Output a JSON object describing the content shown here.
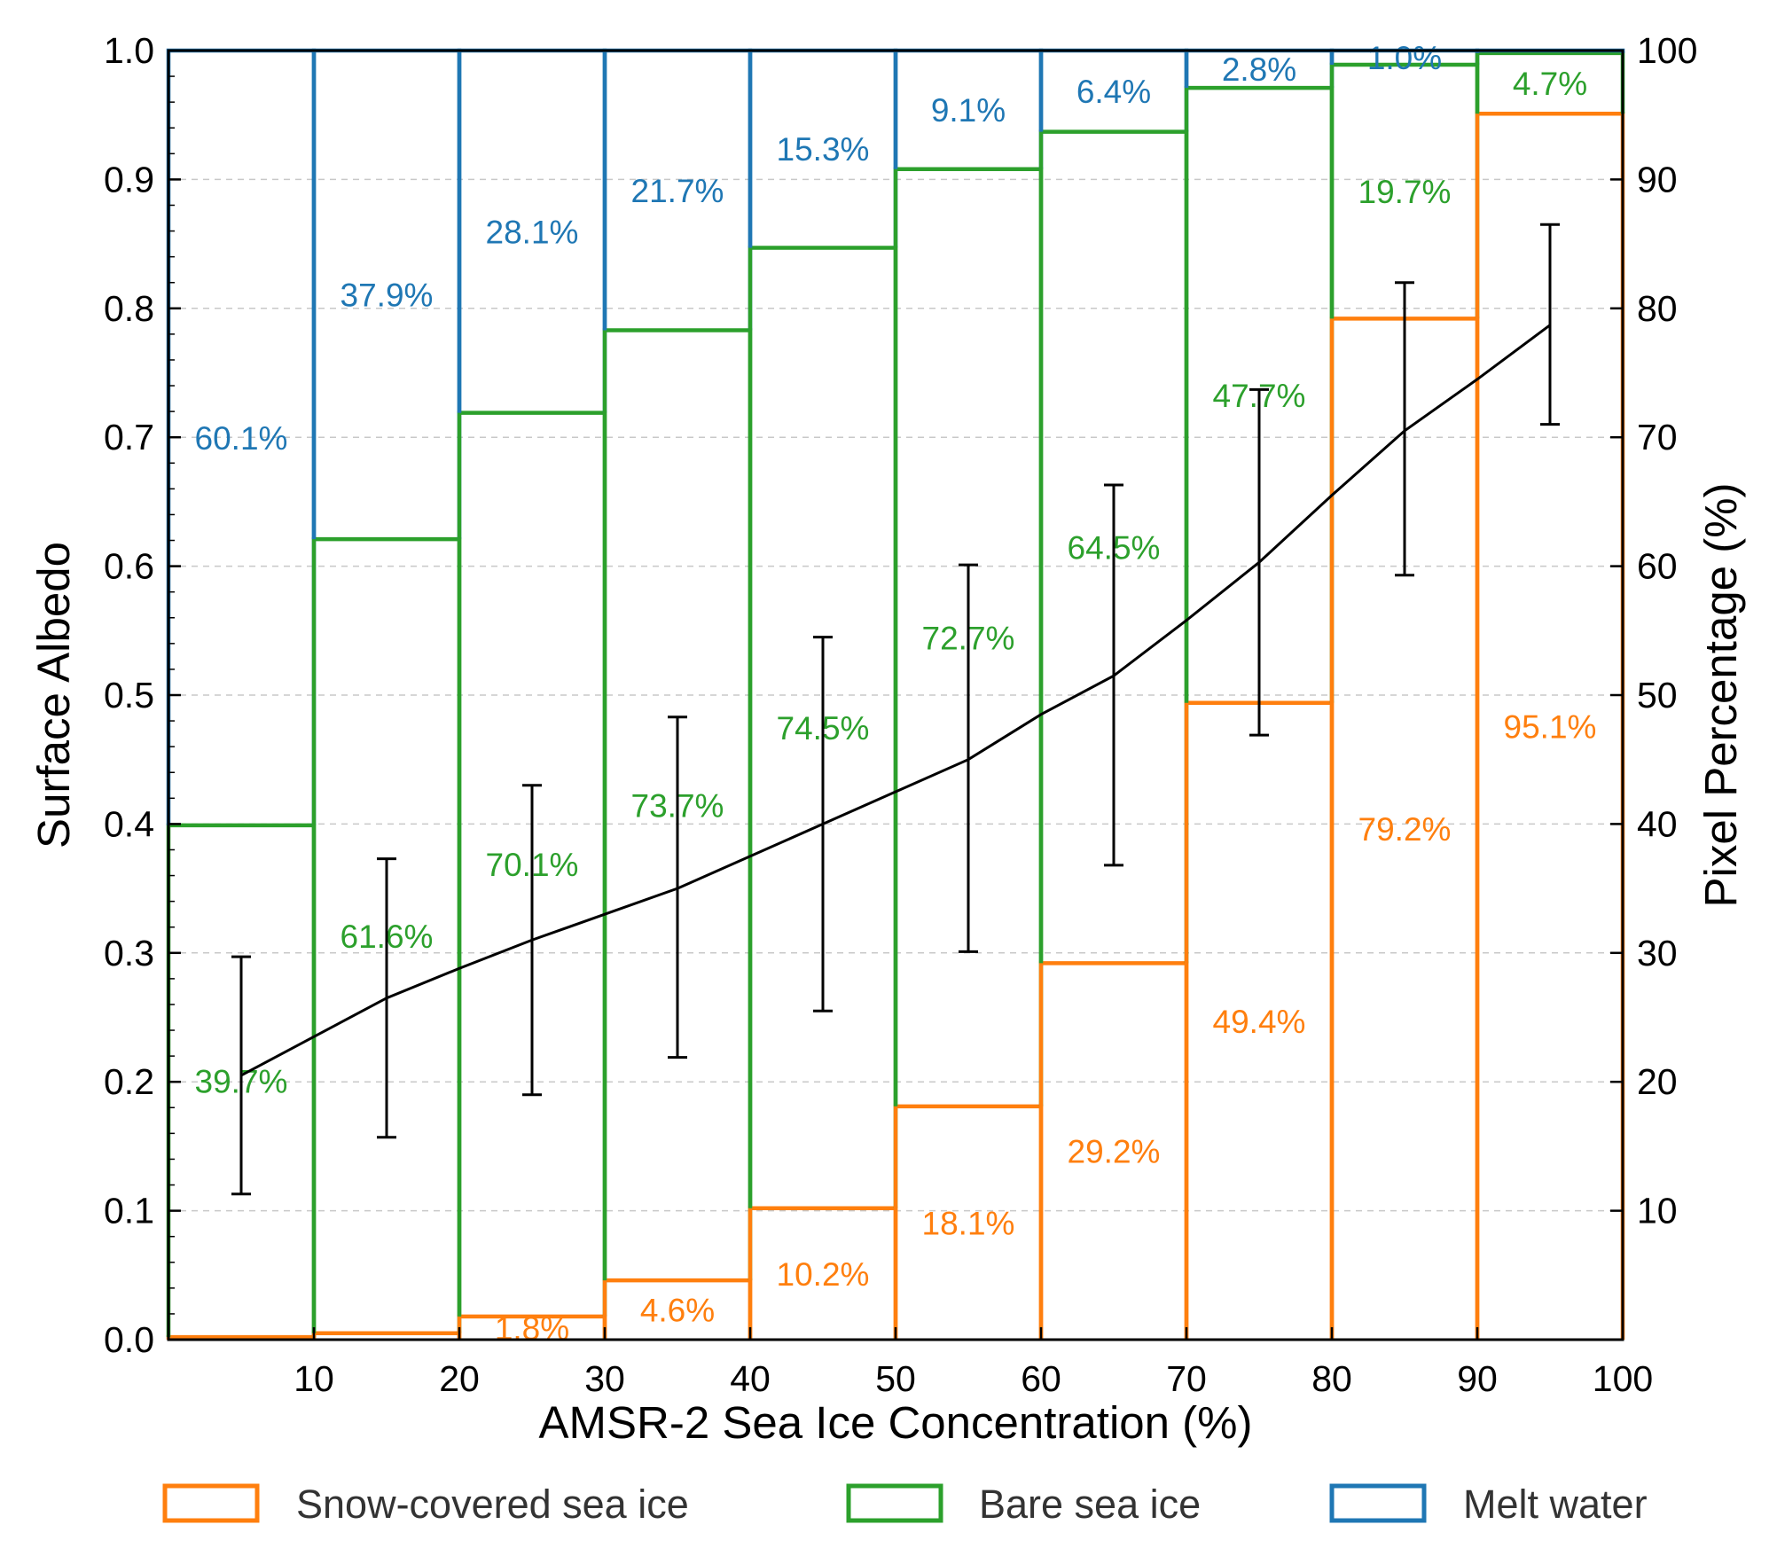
{
  "chart_data": {
    "type": "bar",
    "xlabel": "AMSR-2 Sea Ice Concentration (%)",
    "ylabel": "Surface Albedo",
    "y2label": "Pixel Percentage (%)",
    "xlim": [
      0,
      100
    ],
    "ylim": [
      0,
      1.0
    ],
    "y2lim": [
      0,
      100
    ],
    "x_ticks": [
      10,
      20,
      30,
      40,
      50,
      60,
      70,
      80,
      90,
      100
    ],
    "y_ticks": [
      "0.0",
      "0.1",
      "0.2",
      "0.3",
      "0.4",
      "0.5",
      "0.6",
      "0.7",
      "0.8",
      "0.9",
      "1.0"
    ],
    "y2_ticks": [
      "10",
      "20",
      "30",
      "40",
      "50",
      "60",
      "70",
      "80",
      "90",
      "100"
    ],
    "grid": true,
    "legend_position": "bottom",
    "bins": [
      [
        0,
        10
      ],
      [
        10,
        20
      ],
      [
        20,
        30
      ],
      [
        30,
        40
      ],
      [
        40,
        50
      ],
      [
        50,
        60
      ],
      [
        60,
        70
      ],
      [
        70,
        80
      ],
      [
        80,
        90
      ],
      [
        90,
        100
      ]
    ],
    "stacked_series": [
      {
        "name": "Snow-covered sea ice",
        "color": "#ff7f0e",
        "values": [
          0.2,
          0.5,
          1.8,
          4.6,
          10.2,
          18.1,
          29.2,
          49.4,
          79.2,
          95.1
        ],
        "labels": [
          "",
          "",
          "1.8%",
          "4.6%",
          "10.2%",
          "18.1%",
          "29.2%",
          "49.4%",
          "79.2%",
          "95.1%"
        ]
      },
      {
        "name": "Bare sea ice",
        "color": "#2ca02c",
        "values": [
          39.7,
          61.6,
          70.1,
          73.7,
          74.5,
          72.7,
          64.5,
          47.7,
          19.7,
          4.7
        ],
        "labels": [
          "39.7%",
          "61.6%",
          "70.1%",
          "73.7%",
          "74.5%",
          "72.7%",
          "64.5%",
          "47.7%",
          "19.7%",
          "4.7%"
        ]
      },
      {
        "name": "Melt water",
        "color": "#1f77b4",
        "values": [
          60.1,
          37.9,
          28.1,
          21.7,
          15.3,
          9.1,
          6.4,
          2.8,
          1.0,
          0.2
        ],
        "labels": [
          "60.1%",
          "37.9%",
          "28.1%",
          "21.7%",
          "15.3%",
          "9.1%",
          "6.4%",
          "2.8%",
          "1.0%",
          ""
        ]
      }
    ],
    "albedo_line": {
      "x": [
        5,
        10,
        15,
        20,
        25,
        30,
        35,
        40,
        45,
        50,
        55,
        60,
        65,
        70,
        75,
        80,
        85,
        90,
        95
      ],
      "y": [
        0.205,
        0.235,
        0.265,
        0.288,
        0.31,
        0.33,
        0.35,
        0.375,
        0.4,
        0.425,
        0.45,
        0.485,
        0.515,
        0.558,
        0.603,
        0.655,
        0.705,
        0.745,
        0.787
      ],
      "color": "#000000"
    },
    "error_bars": {
      "x": [
        5,
        15,
        25,
        35,
        45,
        55,
        65,
        75,
        85,
        95
      ],
      "low": [
        0.113,
        0.157,
        0.19,
        0.219,
        0.255,
        0.301,
        0.368,
        0.469,
        0.593,
        0.71
      ],
      "high": [
        0.297,
        0.373,
        0.43,
        0.483,
        0.545,
        0.601,
        0.663,
        0.737,
        0.82,
        0.865
      ]
    }
  },
  "legend": [
    {
      "label": "Snow-covered sea ice",
      "color": "#ff7f0e"
    },
    {
      "label": "Bare sea ice",
      "color": "#2ca02c"
    },
    {
      "label": "Melt water",
      "color": "#1f77b4"
    }
  ]
}
